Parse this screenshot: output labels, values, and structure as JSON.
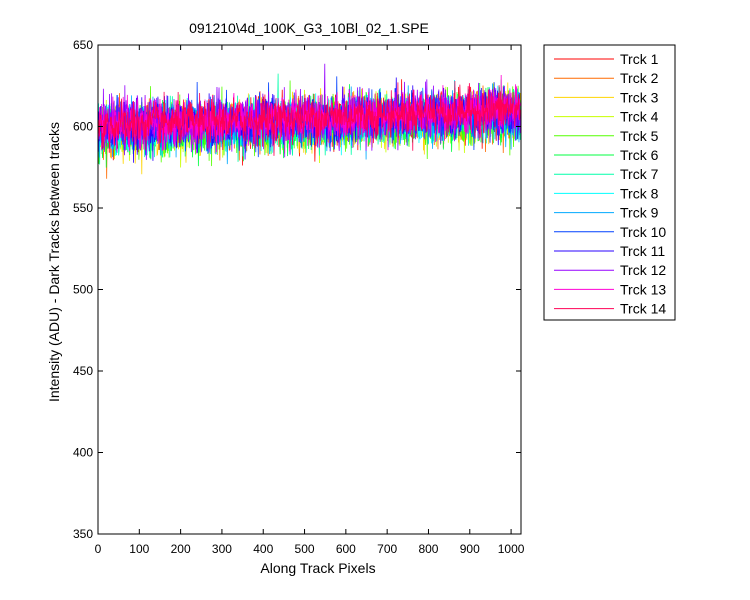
{
  "chart_data": {
    "type": "line",
    "title": "091210\\4d_100K_G3_10Bl_02_1.SPE",
    "xlabel": "Along Track Pixels",
    "ylabel": "Intensity (ADU) - Dark Tracks between tracks",
    "xlim": [
      0,
      1024
    ],
    "ylim": [
      350,
      650
    ],
    "xticks": [
      0,
      100,
      200,
      300,
      400,
      500,
      600,
      700,
      800,
      900,
      1000
    ],
    "yticks": [
      350,
      400,
      450,
      500,
      550,
      600,
      650
    ],
    "grid": false,
    "legend_position": "outside-top-right",
    "n_points": 1024,
    "series": [
      {
        "name": "Trck 1",
        "color": "#ff0000",
        "start_mean": 598,
        "end_mean": 608,
        "noise": 16
      },
      {
        "name": "Trck 2",
        "color": "#ff6a00",
        "start_mean": 597,
        "end_mean": 607,
        "noise": 16
      },
      {
        "name": "Trck 3",
        "color": "#ffd400",
        "start_mean": 597,
        "end_mean": 607,
        "noise": 16
      },
      {
        "name": "Trck 4",
        "color": "#c8ff00",
        "start_mean": 597,
        "end_mean": 607,
        "noise": 16
      },
      {
        "name": "Trck 5",
        "color": "#55ff00",
        "start_mean": 596,
        "end_mean": 606,
        "noise": 17
      },
      {
        "name": "Trck 6",
        "color": "#00ff40",
        "start_mean": 596,
        "end_mean": 606,
        "noise": 16
      },
      {
        "name": "Trck 7",
        "color": "#00ffaa",
        "start_mean": 597,
        "end_mean": 607,
        "noise": 16
      },
      {
        "name": "Trck 8",
        "color": "#00ffff",
        "start_mean": 598,
        "end_mean": 608,
        "noise": 16
      },
      {
        "name": "Trck 9",
        "color": "#00aaff",
        "start_mean": 598,
        "end_mean": 608,
        "noise": 16
      },
      {
        "name": "Trck 10",
        "color": "#0040ff",
        "start_mean": 599,
        "end_mean": 609,
        "noise": 16
      },
      {
        "name": "Trck 11",
        "color": "#2a00ff",
        "start_mean": 599,
        "end_mean": 609,
        "noise": 16
      },
      {
        "name": "Trck 12",
        "color": "#9500ff",
        "start_mean": 600,
        "end_mean": 610,
        "noise": 17
      },
      {
        "name": "Trck 13",
        "color": "#ff00d4",
        "start_mean": 600,
        "end_mean": 610,
        "noise": 16
      },
      {
        "name": "Trck 14",
        "color": "#ff0055",
        "start_mean": 600,
        "end_mean": 611,
        "noise": 15
      }
    ]
  }
}
